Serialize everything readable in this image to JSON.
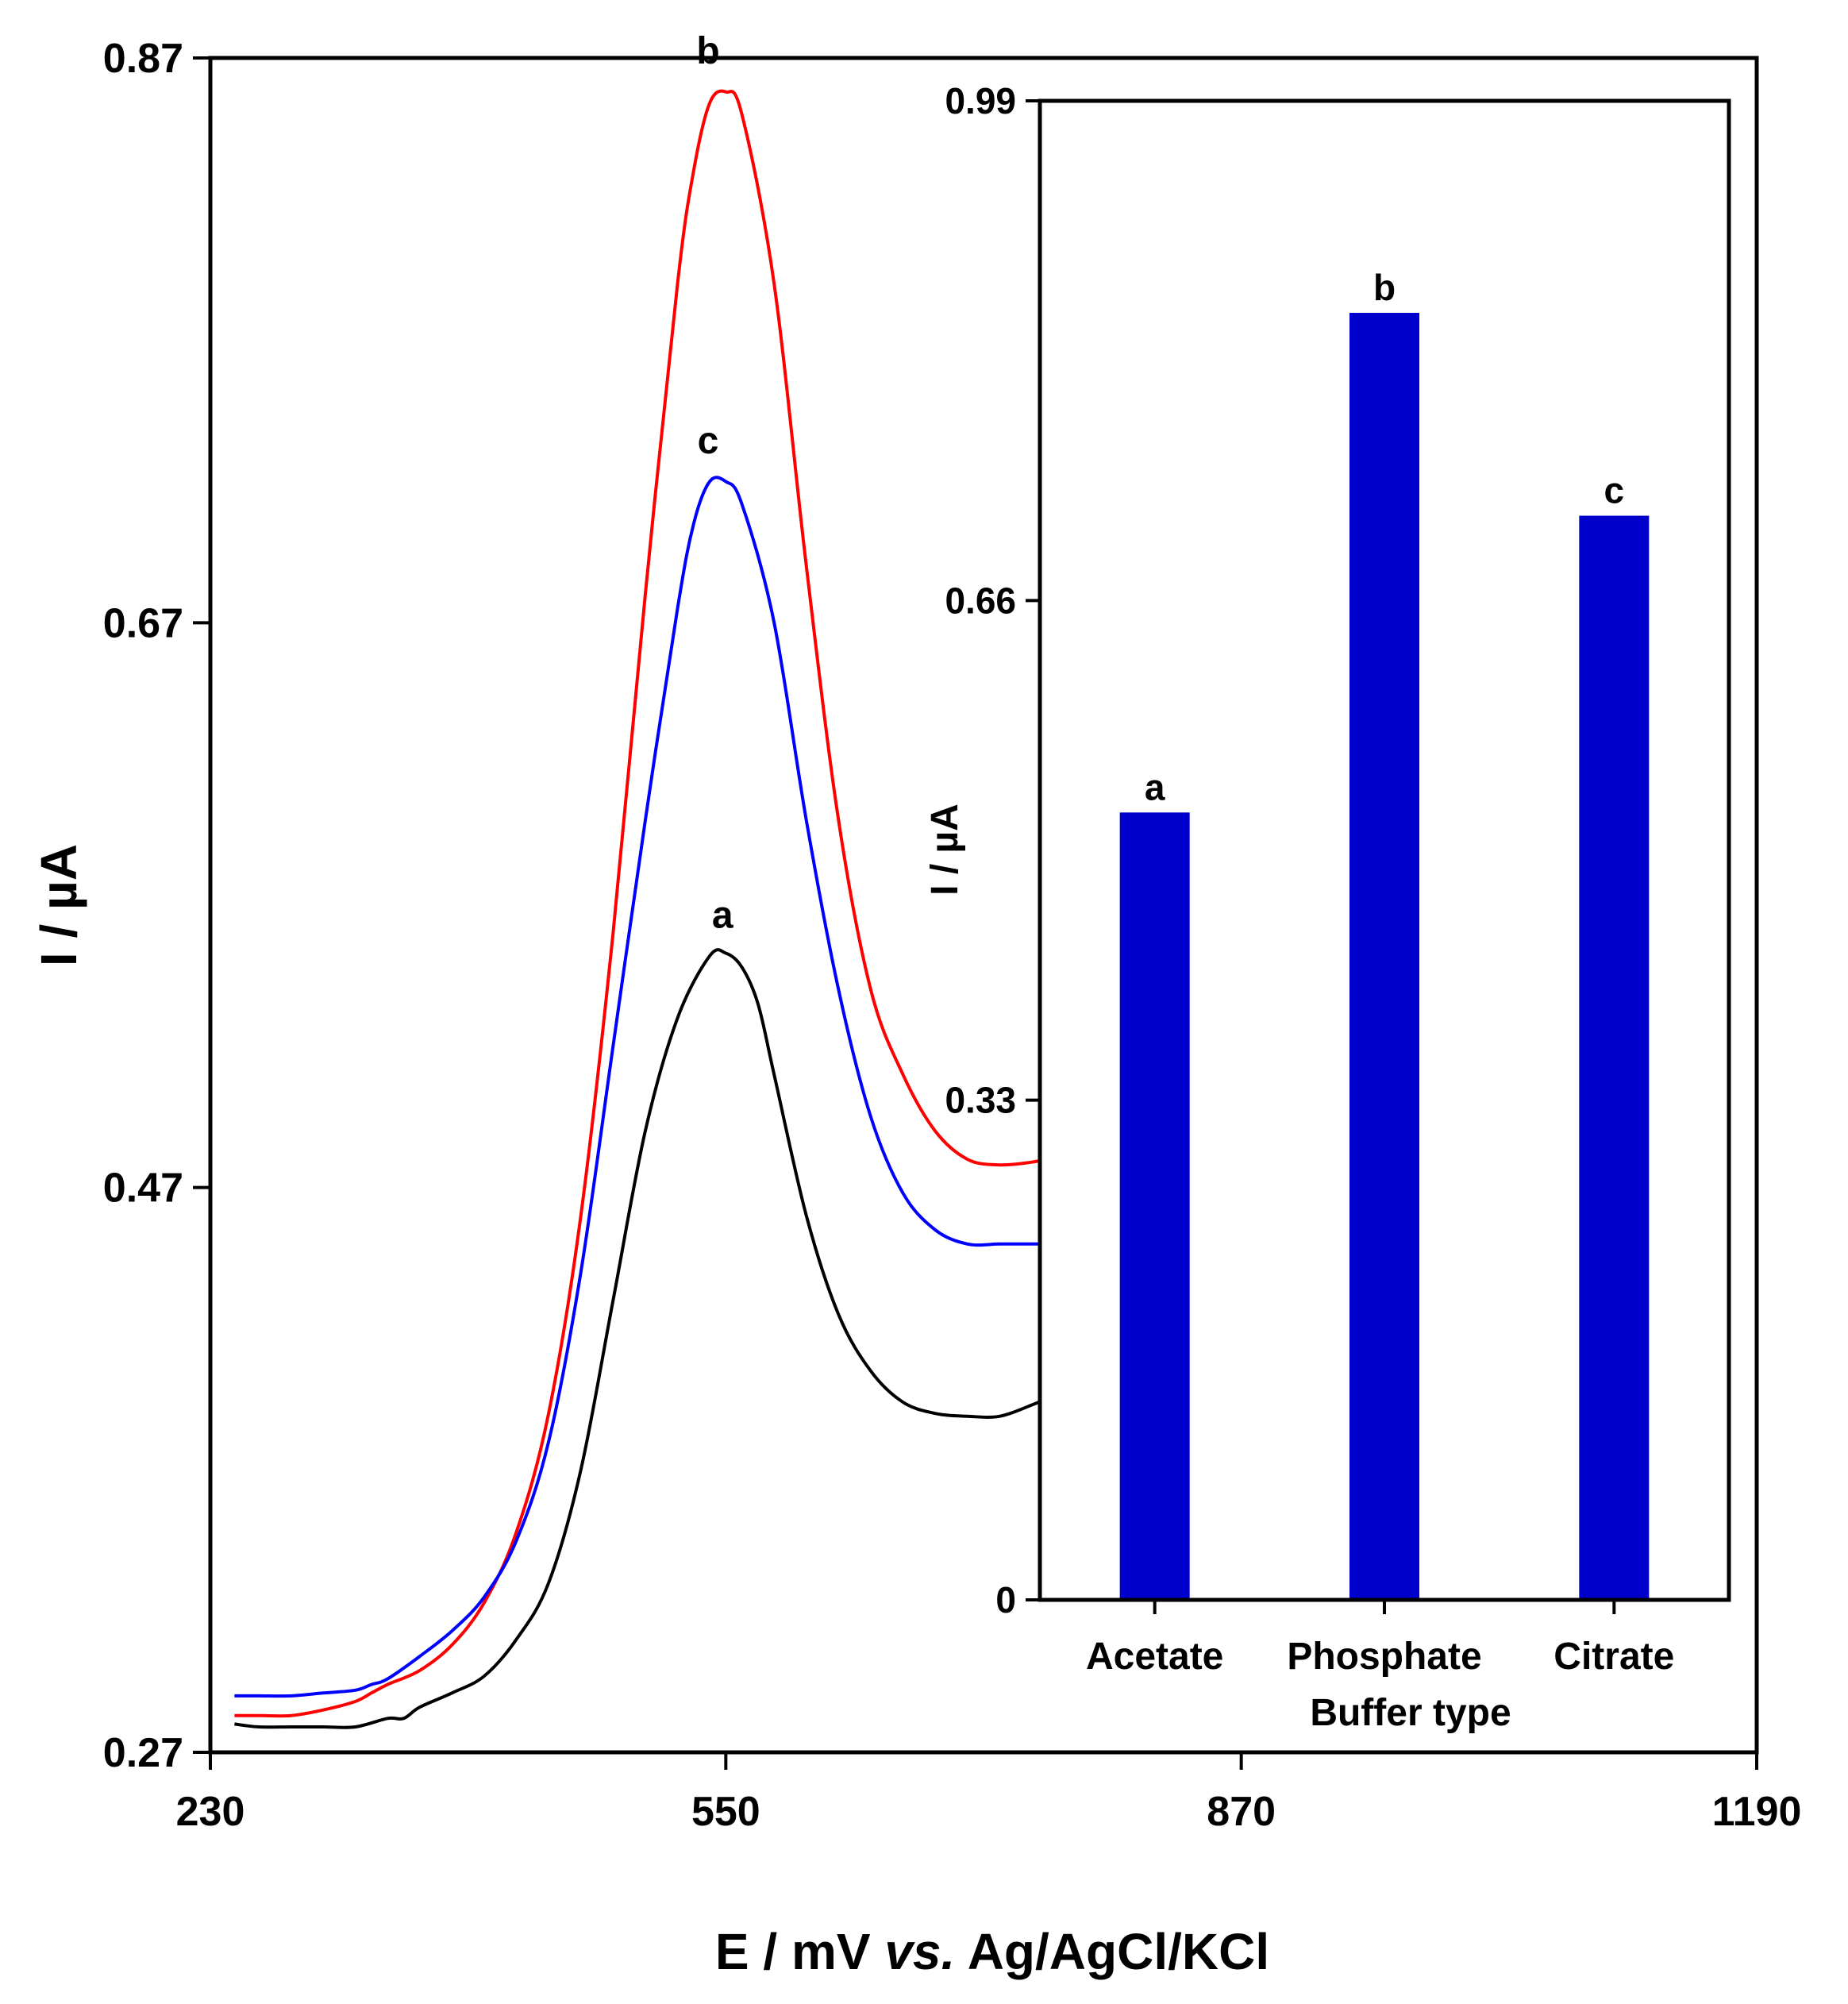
{
  "chart_data": [
    {
      "type": "line",
      "title": "",
      "xlabel": {
        "prefix": "E / mV ",
        "italic": "vs.",
        "suffix": " Ag/AgCl/KCl"
      },
      "ylabel": "I / µA",
      "xlim": [
        230,
        1190
      ],
      "ylim": [
        0.27,
        0.87
      ],
      "xticks": [
        "230",
        "550",
        "870",
        "1190"
      ],
      "yticks": [
        "0.27",
        "0.47",
        "0.67",
        "0.87"
      ],
      "series": [
        {
          "name": "a",
          "color": "#000000",
          "x": [
            245,
            260,
            280,
            300,
            320,
            340,
            350,
            360,
            380,
            400,
            420,
            440,
            460,
            480,
            500,
            520,
            540,
            550,
            560,
            570,
            580,
            600,
            620,
            640,
            660,
            680,
            700,
            720,
            740,
            748
          ],
          "y": [
            0.28,
            0.279,
            0.279,
            0.279,
            0.279,
            0.282,
            0.282,
            0.286,
            0.291,
            0.297,
            0.31,
            0.33,
            0.37,
            0.43,
            0.49,
            0.53,
            0.552,
            0.553,
            0.548,
            0.535,
            0.51,
            0.46,
            0.425,
            0.405,
            0.394,
            0.39,
            0.389,
            0.389,
            0.393,
            0.395
          ]
        },
        {
          "name": "b",
          "color": "#ff0000",
          "x": [
            245,
            260,
            280,
            300,
            320,
            330,
            340,
            360,
            380,
            400,
            420,
            440,
            460,
            480,
            500,
            520,
            530,
            540,
            550,
            560,
            580,
            600,
            620,
            640,
            660,
            680,
            700,
            720,
            740,
            748
          ],
          "y": [
            0.283,
            0.283,
            0.283,
            0.285,
            0.288,
            0.291,
            0.294,
            0.299,
            0.308,
            0.323,
            0.348,
            0.39,
            0.46,
            0.56,
            0.68,
            0.79,
            0.83,
            0.854,
            0.858,
            0.85,
            0.79,
            0.69,
            0.6,
            0.54,
            0.51,
            0.49,
            0.48,
            0.478,
            0.479,
            0.48
          ]
        },
        {
          "name": "c",
          "color": "#0000ff",
          "x": [
            245,
            260,
            280,
            300,
            320,
            330,
            340,
            360,
            380,
            400,
            420,
            440,
            460,
            480,
            500,
            520,
            530,
            540,
            550,
            560,
            580,
            600,
            620,
            640,
            660,
            680,
            700,
            720,
            740,
            748
          ],
          "y": [
            0.29,
            0.29,
            0.29,
            0.291,
            0.292,
            0.294,
            0.296,
            0.304,
            0.313,
            0.325,
            0.345,
            0.38,
            0.44,
            0.52,
            0.6,
            0.675,
            0.705,
            0.72,
            0.72,
            0.712,
            0.67,
            0.6,
            0.54,
            0.495,
            0.468,
            0.455,
            0.45,
            0.45,
            0.45,
            0.45
          ]
        }
      ],
      "annotations": [
        {
          "text": "a",
          "x": 548,
          "y": 0.562
        },
        {
          "text": "b",
          "x": 539,
          "y": 0.868
        },
        {
          "text": "c",
          "x": 539,
          "y": 0.73
        }
      ],
      "grid": false,
      "legend": "none"
    },
    {
      "type": "bar",
      "role": "inset",
      "xlabel": "Buffer type",
      "ylabel": "I / µA",
      "ylim": [
        0,
        0.99
      ],
      "yticks": [
        "0",
        "0.33",
        "0.66",
        "0.99"
      ],
      "categories": [
        "Acetate",
        "Phosphate",
        "Citrate"
      ],
      "values": [
        0.52,
        0.85,
        0.716
      ],
      "bar_labels": [
        "a",
        "b",
        "c"
      ],
      "bar_color": "#0000cc",
      "grid": false,
      "legend": "none"
    }
  ]
}
